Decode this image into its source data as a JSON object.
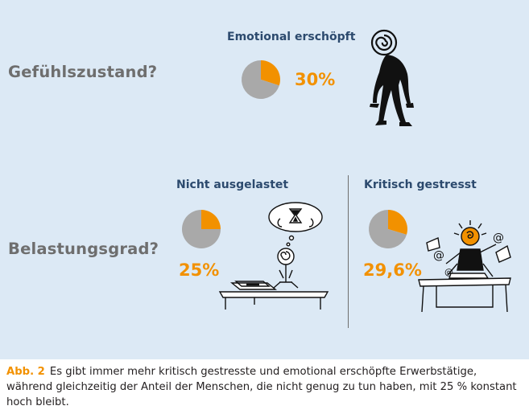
{
  "row_labels": {
    "feeling": "Gefühlszustand?",
    "load": "Belastungsgrad?"
  },
  "chart_data": [
    {
      "type": "pie",
      "row": "Gefühlszustand?",
      "title": "Emotional erschöpft",
      "value_label": "30%",
      "values": [
        30,
        70
      ],
      "colors": [
        "#f29100",
        "#a9a9a9"
      ]
    },
    {
      "type": "pie",
      "row": "Belastungsgrad?",
      "title": "Nicht ausgelastet",
      "value_label": "25%",
      "values": [
        25,
        75
      ],
      "colors": [
        "#f29100",
        "#a9a9a9"
      ]
    },
    {
      "type": "pie",
      "row": "Belastungsgrad?",
      "title": "Kritisch gestresst",
      "value_label": "29,6%",
      "values": [
        29.6,
        70.4
      ],
      "colors": [
        "#f29100",
        "#a9a9a9"
      ]
    }
  ],
  "illustrations": {
    "exhausted": "exhausted-person-icon",
    "bored": "bored-person-icon",
    "stressed": "stressed-person-icon"
  },
  "colors": {
    "background": "#dce9f5",
    "accent": "#f29100",
    "pie_rest": "#a9a9a9",
    "title": "#2c4a6e",
    "row_label": "#6e6e6e"
  },
  "caption": {
    "label": "Abb. 2",
    "text": "Es gibt immer mehr kritisch gestresste und emotional erschöpfte Erwerbstätige, während gleichzeitig der Anteil der Menschen, die nicht genug zu tun haben, mit 25 % konstant hoch bleibt."
  }
}
